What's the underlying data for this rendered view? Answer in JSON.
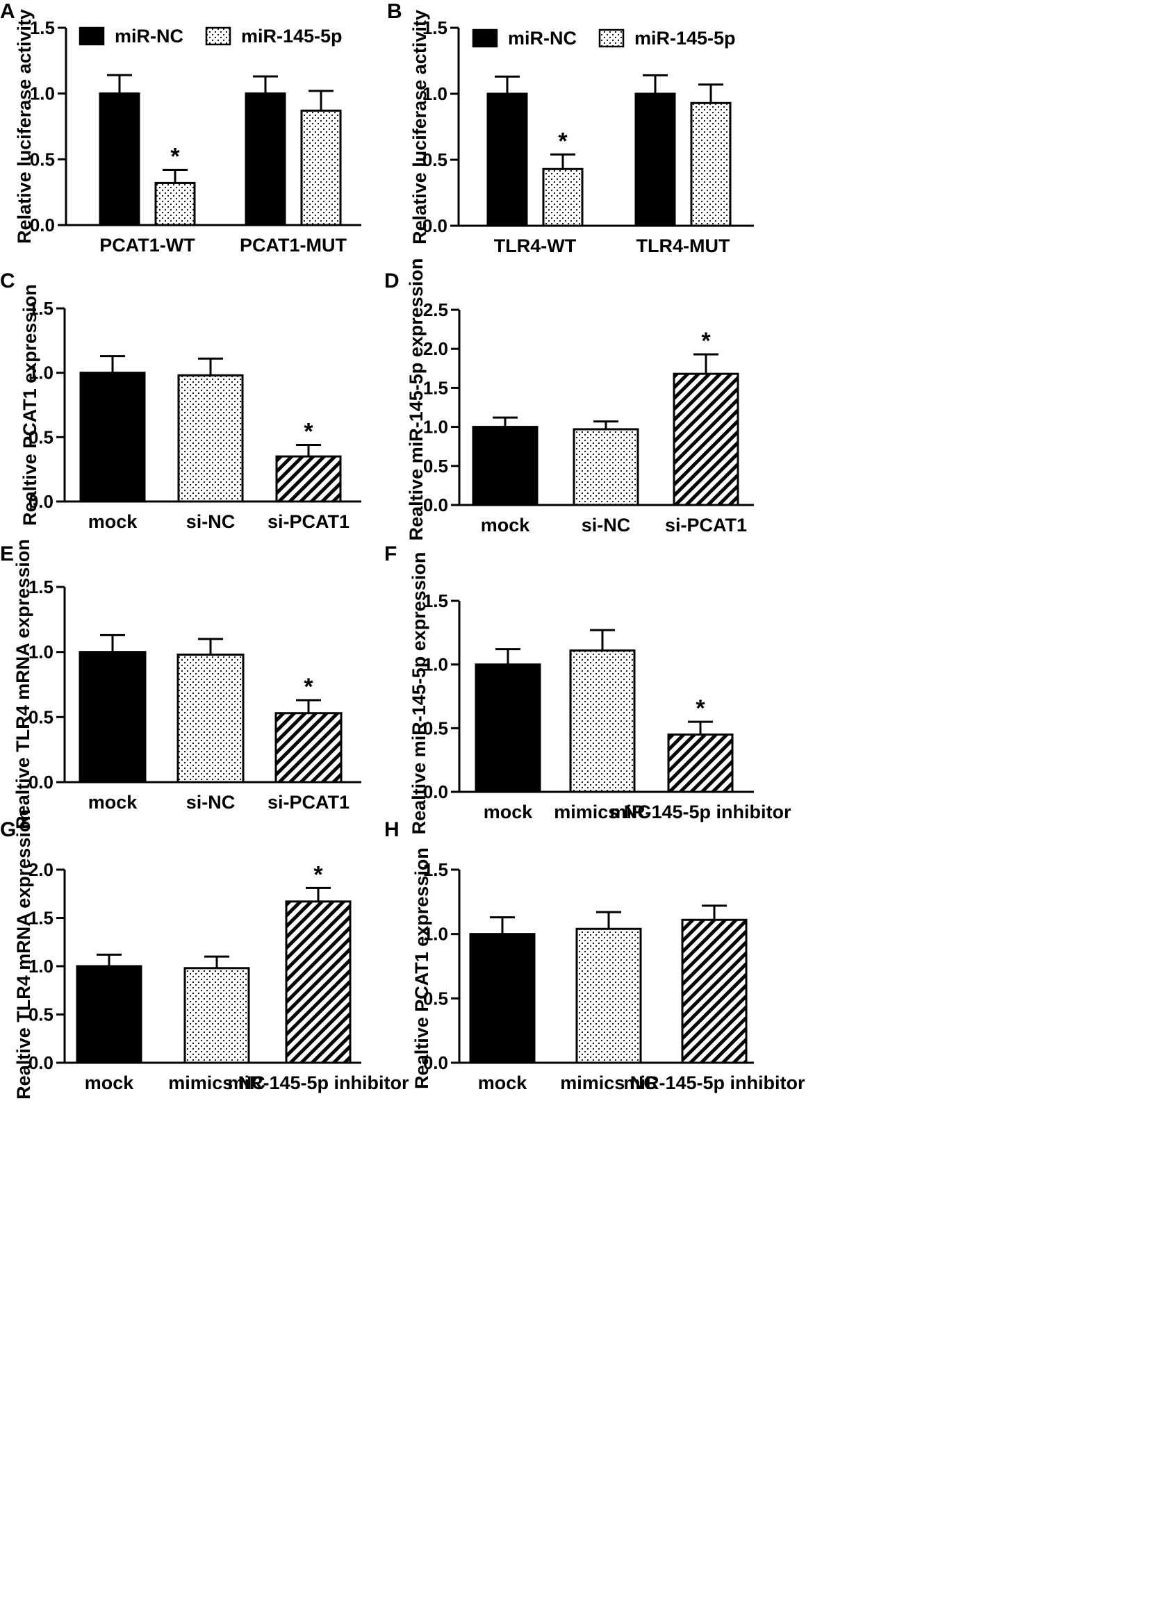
{
  "colors": {
    "ink": "#000000",
    "background": "#ffffff"
  },
  "patterns": {
    "solid": "solid-black",
    "dots": "dotted-white",
    "hatch": "diagonal-stripes"
  },
  "chart_data": [
    {
      "panel": "A",
      "type": "bar",
      "ylabel": "Relative luciferase activity",
      "ylim": [
        0,
        1.5
      ],
      "ticks": [
        "0.0",
        "0.5",
        "1.0",
        "1.5"
      ],
      "categories": [
        "PCAT1-WT",
        "PCAT1-MUT"
      ],
      "legend": {
        "placement": "top",
        "entries": [
          "miR-NC",
          "miR-145-5p"
        ]
      },
      "series": [
        {
          "name": "miR-NC",
          "pattern": "solid",
          "values": [
            1.0,
            1.0
          ],
          "errors": [
            0.14,
            0.13
          ]
        },
        {
          "name": "miR-145-5p",
          "pattern": "dots",
          "values": [
            0.32,
            0.87
          ],
          "errors": [
            0.1,
            0.15
          ]
        }
      ],
      "significance": [
        {
          "category": 0,
          "series": 1,
          "label": "*"
        }
      ]
    },
    {
      "panel": "B",
      "type": "bar",
      "ylabel": "Relative luciferase activity",
      "ylim": [
        0,
        1.5
      ],
      "ticks": [
        "0.0",
        "0.5",
        "1.0",
        "1.5"
      ],
      "categories": [
        "TLR4-WT",
        "TLR4-MUT"
      ],
      "legend": {
        "placement": "top",
        "entries": [
          "miR-NC",
          "miR-145-5p"
        ]
      },
      "series": [
        {
          "name": "miR-NC",
          "pattern": "solid",
          "values": [
            1.0,
            1.0
          ],
          "errors": [
            0.13,
            0.14
          ]
        },
        {
          "name": "miR-145-5p",
          "pattern": "dots",
          "values": [
            0.43,
            0.93
          ],
          "errors": [
            0.11,
            0.14
          ]
        }
      ],
      "significance": [
        {
          "category": 0,
          "series": 1,
          "label": "*"
        }
      ]
    },
    {
      "panel": "C",
      "type": "bar",
      "ylabel": "Realtive PCAT1 expression",
      "ylim": [
        0,
        1.5
      ],
      "ticks": [
        "0.0",
        "0.5",
        "1.0",
        "1.5"
      ],
      "categories": [
        "mock",
        "si-NC",
        "si-PCAT1"
      ],
      "patterns": [
        "solid",
        "dots",
        "hatch"
      ],
      "values": [
        1.0,
        0.98,
        0.35
      ],
      "errors": [
        0.13,
        0.13,
        0.09
      ],
      "significance": [
        {
          "category": 2,
          "label": "*"
        }
      ]
    },
    {
      "panel": "D",
      "type": "bar",
      "ylabel": "Realtive miR-145-5p expression",
      "ylim": [
        0,
        2.5
      ],
      "ticks": [
        "0.0",
        "0.5",
        "1.0",
        "1.5",
        "2.0",
        "2.5"
      ],
      "categories": [
        "mock",
        "si-NC",
        "si-PCAT1"
      ],
      "patterns": [
        "solid",
        "dots",
        "hatch"
      ],
      "values": [
        1.0,
        0.97,
        1.68
      ],
      "errors": [
        0.12,
        0.1,
        0.25
      ],
      "significance": [
        {
          "category": 2,
          "label": "*"
        }
      ]
    },
    {
      "panel": "E",
      "type": "bar",
      "ylabel": "Realtive TLR4 mRNA expression",
      "ylim": [
        0,
        1.5
      ],
      "ticks": [
        "0.0",
        "0.5",
        "1.0",
        "1.5"
      ],
      "categories": [
        "mock",
        "si-NC",
        "si-PCAT1"
      ],
      "patterns": [
        "solid",
        "dots",
        "hatch"
      ],
      "values": [
        1.0,
        0.98,
        0.53
      ],
      "errors": [
        0.13,
        0.12,
        0.1
      ],
      "significance": [
        {
          "category": 2,
          "label": "*"
        }
      ]
    },
    {
      "panel": "F",
      "type": "bar",
      "ylabel": "Realtive miR-145-5p expression",
      "ylim": [
        0,
        1.5
      ],
      "ticks": [
        "0.0",
        "0.5",
        "1.0",
        "1.5"
      ],
      "categories": [
        "mock",
        "mimics NC",
        "miR-145-5p inhibitor"
      ],
      "patterns": [
        "solid",
        "dots",
        "hatch"
      ],
      "values": [
        1.0,
        1.11,
        0.45
      ],
      "errors": [
        0.12,
        0.16,
        0.1
      ],
      "significance": [
        {
          "category": 2,
          "label": "*"
        }
      ]
    },
    {
      "panel": "G",
      "type": "bar",
      "ylabel": "Realtive TLR4 mRNA expression",
      "ylim": [
        0,
        2.0
      ],
      "ticks": [
        "0.0",
        "0.5",
        "1.0",
        "1.5",
        "2.0"
      ],
      "categories": [
        "mock",
        "mimics NC",
        "miR-145-5p inhibitor"
      ],
      "patterns": [
        "solid",
        "dots",
        "hatch"
      ],
      "values": [
        1.0,
        0.98,
        1.67
      ],
      "errors": [
        0.12,
        0.12,
        0.14
      ],
      "significance": [
        {
          "category": 2,
          "label": "*"
        }
      ]
    },
    {
      "panel": "H",
      "type": "bar",
      "ylabel": "Realtive PCAT1 expression",
      "ylim": [
        0,
        1.5
      ],
      "ticks": [
        "0.0",
        "0.5",
        "1.0",
        "1.5"
      ],
      "categories": [
        "mock",
        "mimics NC",
        "miR-145-5p inhibitor"
      ],
      "patterns": [
        "solid",
        "dots",
        "hatch"
      ],
      "values": [
        1.0,
        1.04,
        1.11
      ],
      "errors": [
        0.13,
        0.13,
        0.11
      ],
      "significance": []
    }
  ]
}
